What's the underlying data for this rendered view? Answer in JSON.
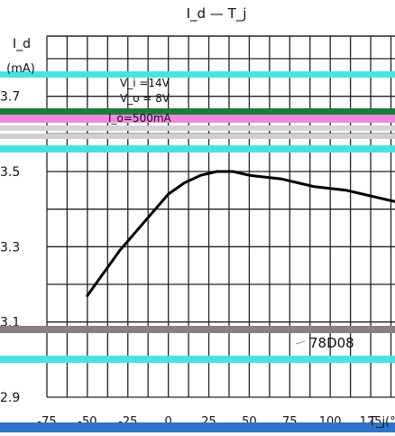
{
  "chart_data": {
    "type": "line",
    "title": "I_d — T_j",
    "ylabel_line1": "I_d",
    "ylabel_line2": "(mA)",
    "xlabel": "T_j(°C)",
    "x_ticks": [
      "-75",
      "-50",
      "-25",
      "0",
      "25",
      "50",
      "75",
      "100",
      "125"
    ],
    "y_ticks": [
      "2.9",
      "3.1",
      "3.3",
      "3.5",
      "3.7"
    ],
    "xlim": [
      -75,
      140
    ],
    "ylim": [
      2.9,
      3.86
    ],
    "grid": true,
    "conditions": [
      "V_i =14V",
      "V_o = 8V",
      "I_o=500mA"
    ],
    "annotation": "78D08",
    "series": [
      {
        "x": [
          -50,
          -40,
          -30,
          -20,
          -10,
          0,
          10,
          20,
          30,
          40,
          50,
          60,
          70,
          80,
          90,
          100,
          110,
          120,
          130,
          140
        ],
        "values": [
          3.17,
          3.23,
          3.29,
          3.34,
          3.39,
          3.44,
          3.47,
          3.49,
          3.5,
          3.5,
          3.49,
          3.485,
          3.48,
          3.47,
          3.46,
          3.455,
          3.45,
          3.44,
          3.43,
          3.42
        ]
      }
    ]
  }
}
